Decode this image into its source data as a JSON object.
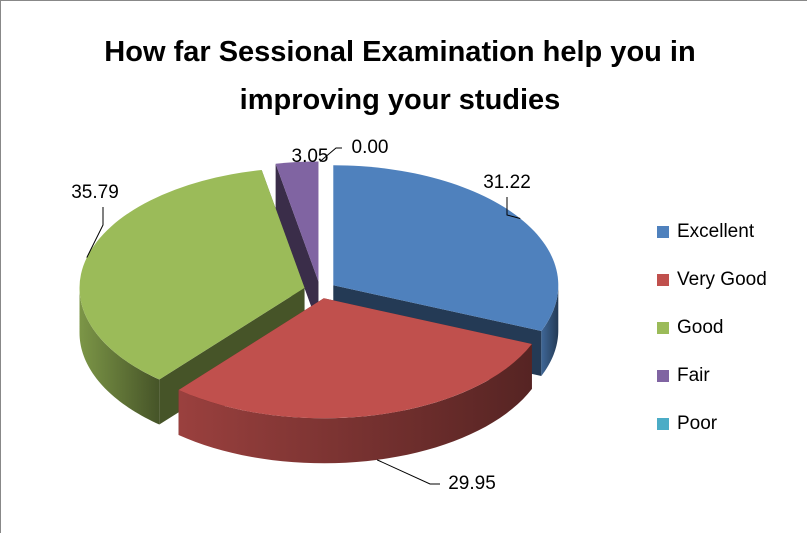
{
  "chart_data": {
    "type": "pie3d",
    "title": "How far Sessional Examination help you in improving your studies",
    "categories": [
      "Excellent",
      "Very Good",
      "Good",
      "Fair",
      "Poor"
    ],
    "values": [
      31.22,
      29.95,
      35.79,
      3.05,
      0
    ],
    "value_labels": [
      "31.22",
      "29.95",
      "35.79",
      "3.05",
      "0.00"
    ],
    "colors": [
      "#4f81bd",
      "#c0504d",
      "#9bbb59",
      "#8064a2",
      "#4bacc6"
    ],
    "legend": "right"
  }
}
